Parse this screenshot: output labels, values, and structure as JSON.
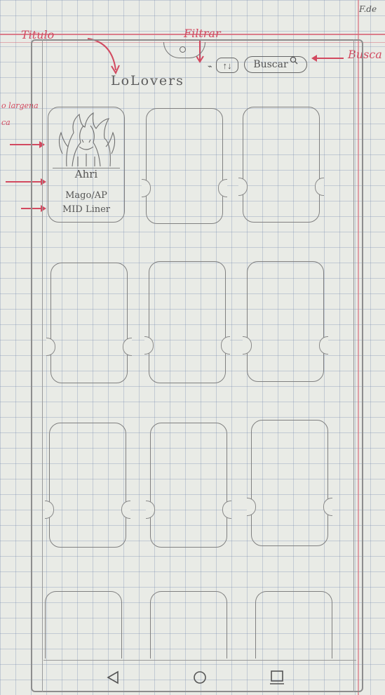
{
  "annotations": {
    "corner": "F.de",
    "title": "Titulo",
    "filter": "Filtrar",
    "search": "Busca",
    "left_1": "o largena",
    "left_2": "ca"
  },
  "header": {
    "app_title": "LoLovers",
    "filter_label": "↑↓",
    "search_label": "Buscar",
    "search_icon": "🔍"
  },
  "cards": [
    {
      "name": "Ahri",
      "role_1": "Mago/AP",
      "role_2": "MID Liner",
      "image_icon": "champion-portrait"
    },
    {
      "name": "",
      "role_1": "",
      "role_2": ""
    },
    {
      "name": "",
      "role_1": "",
      "role_2": ""
    },
    {
      "name": "",
      "role_1": "",
      "role_2": ""
    },
    {
      "name": "",
      "role_1": "",
      "role_2": ""
    },
    {
      "name": "",
      "role_1": "",
      "role_2": ""
    },
    {
      "name": "",
      "role_1": "",
      "role_2": ""
    },
    {
      "name": "",
      "role_1": "",
      "role_2": ""
    },
    {
      "name": "",
      "role_1": "",
      "role_2": ""
    },
    {
      "name": "",
      "role_1": "",
      "role_2": ""
    },
    {
      "name": "",
      "role_1": "",
      "role_2": ""
    },
    {
      "name": "",
      "role_1": "",
      "role_2": ""
    }
  ],
  "navbar": {
    "back_icon": "back-triangle-icon",
    "home_icon": "home-circle-icon",
    "recent_icon": "recent-apps-icon"
  },
  "colors": {
    "annotation": "#d24a60",
    "pencil": "#7a7a7a",
    "paper": "#e9ebe6",
    "grid": "#788caf"
  }
}
